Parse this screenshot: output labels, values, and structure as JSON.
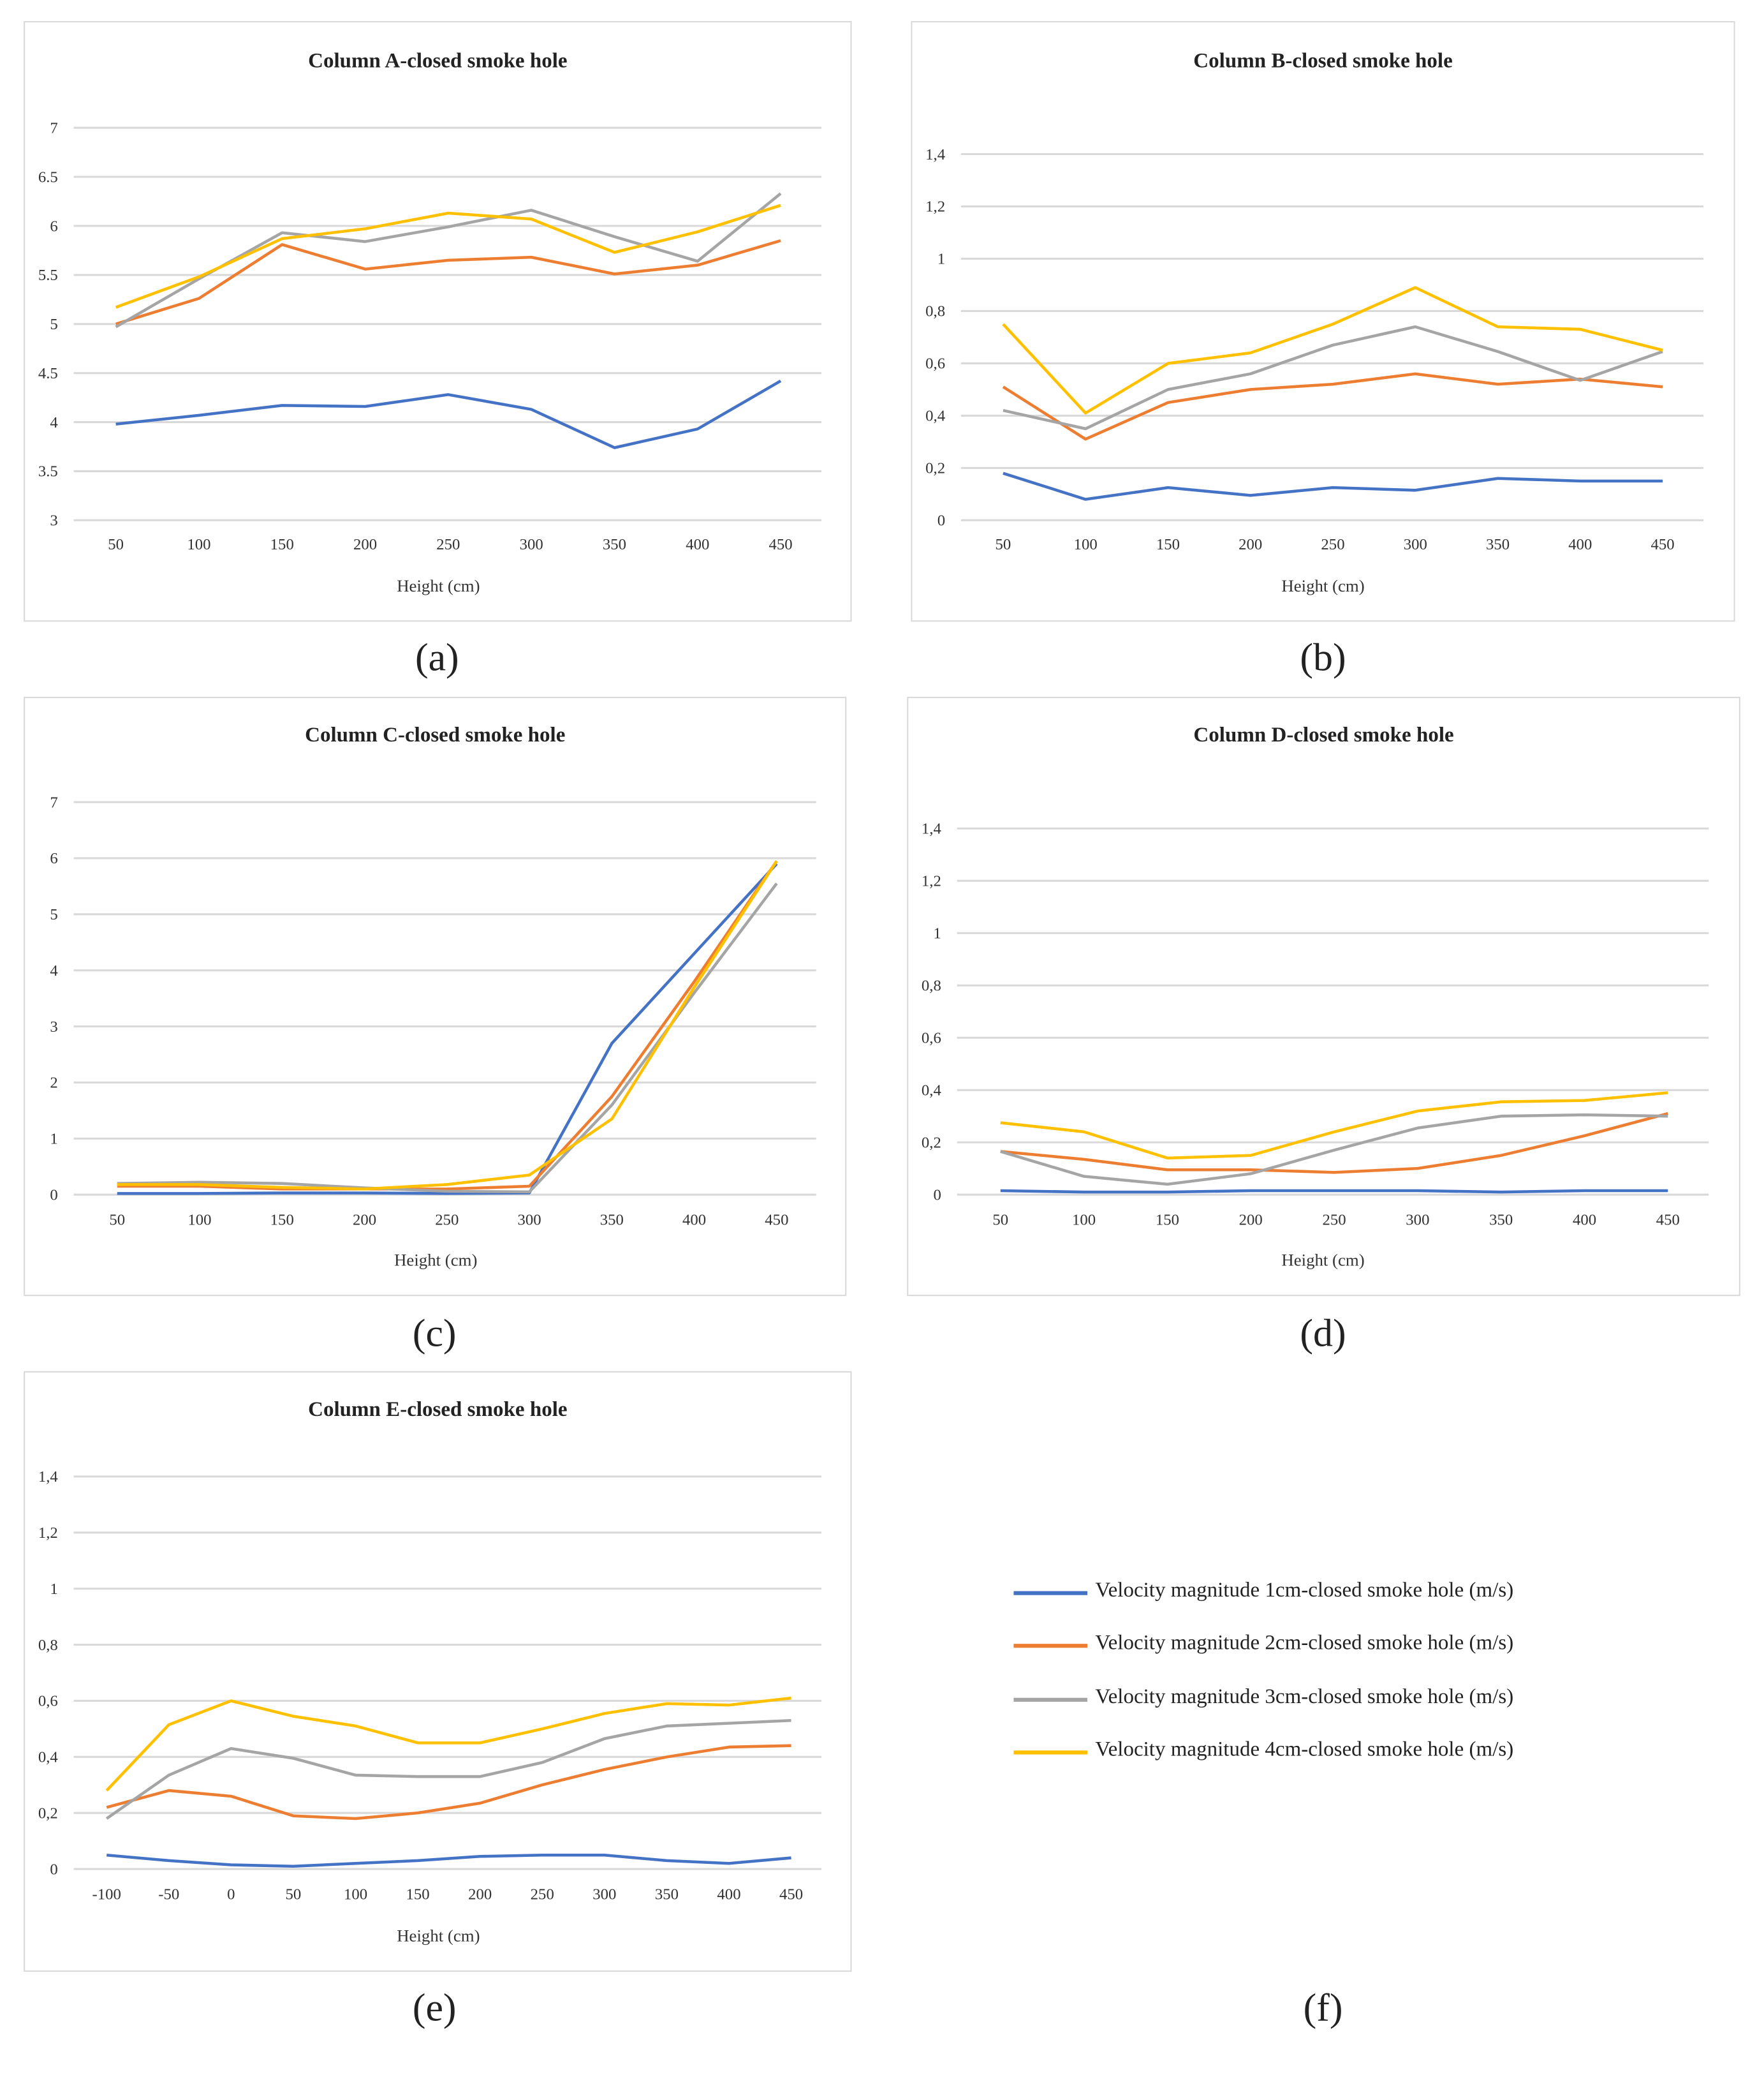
{
  "series_names": [
    "Velocity magnitude 1cm-closed smoke hole (m/s)",
    "Velocity magnitude 2cm-closed smoke hole (m/s)",
    "Velocity magnitude 3cm-closed smoke hole (m/s)",
    "Velocity magnitude 4cm-closed smoke hole (m/s)"
  ],
  "colors": [
    "#4472c4",
    "#ed7d31",
    "#a5a5a5",
    "#ffc000"
  ],
  "panel_labels": [
    "(a)",
    "(b)",
    "(c)",
    "(d)",
    "(e)",
    "(f)"
  ],
  "chart_data": [
    {
      "type": "line",
      "title": "Column A-closed smoke hole",
      "xlabel": "Height (cm)",
      "ylabel": "",
      "categories": [
        "50",
        "100",
        "150",
        "200",
        "250",
        "300",
        "350",
        "400",
        "450"
      ],
      "ylim": [
        3,
        7
      ],
      "yticks": [
        {
          "v": 3,
          "t": "3"
        },
        {
          "v": 3.5,
          "t": "3.5"
        },
        {
          "v": 4,
          "t": "4"
        },
        {
          "v": 4.5,
          "t": "4.5"
        },
        {
          "v": 5,
          "t": "5"
        },
        {
          "v": 5.5,
          "t": "5.5"
        },
        {
          "v": 6,
          "t": "6"
        },
        {
          "v": 6.5,
          "t": "6.5"
        },
        {
          "v": 7,
          "t": "7"
        }
      ],
      "grid": true,
      "series": [
        {
          "name": "Velocity magnitude 1cm-closed smoke hole (m/s)",
          "values": [
            3.98,
            4.07,
            4.17,
            4.16,
            4.28,
            4.13,
            3.74,
            3.93,
            4.42
          ]
        },
        {
          "name": "Velocity magnitude 2cm-closed smoke hole (m/s)",
          "values": [
            5.0,
            5.26,
            5.81,
            5.56,
            5.65,
            5.68,
            5.51,
            5.6,
            5.85
          ]
        },
        {
          "name": "Velocity magnitude 3cm-closed smoke hole (m/s)",
          "values": [
            4.97,
            5.46,
            5.93,
            5.84,
            5.99,
            6.16,
            5.89,
            5.64,
            6.33
          ]
        },
        {
          "name": "Velocity magnitude 4cm-closed smoke hole (m/s)",
          "values": [
            5.17,
            5.48,
            5.87,
            5.97,
            6.13,
            6.07,
            5.73,
            5.94,
            6.21
          ]
        }
      ]
    },
    {
      "type": "line",
      "title": "Column B-closed smoke hole",
      "xlabel": "Height (cm)",
      "ylabel": "",
      "categories": [
        "50",
        "100",
        "150",
        "200",
        "250",
        "300",
        "350",
        "400",
        "450"
      ],
      "ylim": [
        0,
        1.4
      ],
      "yticks": [
        {
          "v": 0,
          "t": "0"
        },
        {
          "v": 0.2,
          "t": "0,2"
        },
        {
          "v": 0.4,
          "t": "0,4"
        },
        {
          "v": 0.6,
          "t": "0,6"
        },
        {
          "v": 0.8,
          "t": "0,8"
        },
        {
          "v": 1,
          "t": "1"
        },
        {
          "v": 1.2,
          "t": "1,2"
        },
        {
          "v": 1.4,
          "t": "1,4"
        }
      ],
      "grid": true,
      "series": [
        {
          "name": "Velocity magnitude 1cm-closed smoke hole (m/s)",
          "values": [
            0.18,
            0.08,
            0.125,
            0.095,
            0.125,
            0.115,
            0.16,
            0.15,
            0.15
          ]
        },
        {
          "name": "Velocity magnitude 2cm-closed smoke hole (m/s)",
          "values": [
            0.51,
            0.31,
            0.45,
            0.5,
            0.52,
            0.56,
            0.52,
            0.54,
            0.51
          ]
        },
        {
          "name": "Velocity magnitude 3cm-closed smoke hole (m/s)",
          "values": [
            0.42,
            0.35,
            0.5,
            0.56,
            0.67,
            0.74,
            0.645,
            0.535,
            0.645
          ]
        },
        {
          "name": "Velocity magnitude 4cm-closed smoke hole (m/s)",
          "values": [
            0.75,
            0.41,
            0.6,
            0.64,
            0.75,
            0.89,
            0.74,
            0.73,
            0.65
          ]
        }
      ]
    },
    {
      "type": "line",
      "title": "Column C-closed smoke hole",
      "xlabel": "Height (cm)",
      "ylabel": "",
      "categories": [
        "50",
        "100",
        "150",
        "200",
        "250",
        "300",
        "350",
        "400",
        "450"
      ],
      "ylim": [
        0,
        7
      ],
      "yticks": [
        {
          "v": 0,
          "t": "0"
        },
        {
          "v": 1,
          "t": "1"
        },
        {
          "v": 2,
          "t": "2"
        },
        {
          "v": 3,
          "t": "3"
        },
        {
          "v": 4,
          "t": "4"
        },
        {
          "v": 5,
          "t": "5"
        },
        {
          "v": 6,
          "t": "6"
        },
        {
          "v": 7,
          "t": "7"
        }
      ],
      "grid": true,
      "series": [
        {
          "name": "Velocity magnitude 1cm-closed smoke hole (m/s)",
          "values": [
            0.02,
            0.02,
            0.03,
            0.03,
            0.02,
            0.03,
            2.7,
            4.3,
            5.9
          ]
        },
        {
          "name": "Velocity magnitude 2cm-closed smoke hole (m/s)",
          "values": [
            0.15,
            0.15,
            0.1,
            0.1,
            0.1,
            0.15,
            1.75,
            3.8,
            5.95
          ]
        },
        {
          "name": "Velocity magnitude 3cm-closed smoke hole (m/s)",
          "values": [
            0.2,
            0.22,
            0.2,
            0.12,
            0.06,
            0.05,
            1.6,
            3.6,
            5.55
          ]
        },
        {
          "name": "Velocity magnitude 4cm-closed smoke hole (m/s)",
          "values": [
            0.18,
            0.18,
            0.13,
            0.1,
            0.18,
            0.35,
            1.35,
            3.7,
            5.95
          ]
        }
      ]
    },
    {
      "type": "line",
      "title": "Column D-closed smoke hole",
      "xlabel": "Height (cm)",
      "ylabel": "",
      "categories": [
        "50",
        "100",
        "150",
        "200",
        "250",
        "300",
        "350",
        "400",
        "450"
      ],
      "ylim": [
        0,
        1.4
      ],
      "yticks": [
        {
          "v": 0,
          "t": "0"
        },
        {
          "v": 0.2,
          "t": "0,2"
        },
        {
          "v": 0.4,
          "t": "0,4"
        },
        {
          "v": 0.6,
          "t": "0,6"
        },
        {
          "v": 0.8,
          "t": "0,8"
        },
        {
          "v": 1,
          "t": "1"
        },
        {
          "v": 1.2,
          "t": "1,2"
        },
        {
          "v": 1.4,
          "t": "1,4"
        }
      ],
      "grid": true,
      "series": [
        {
          "name": "Velocity magnitude 1cm-closed smoke hole (m/s)",
          "values": [
            0.015,
            0.01,
            0.01,
            0.015,
            0.015,
            0.015,
            0.01,
            0.015,
            0.015
          ]
        },
        {
          "name": "Velocity magnitude 2cm-closed smoke hole (m/s)",
          "values": [
            0.165,
            0.135,
            0.095,
            0.095,
            0.085,
            0.1,
            0.15,
            0.225,
            0.31
          ]
        },
        {
          "name": "Velocity magnitude 3cm-closed smoke hole (m/s)",
          "values": [
            0.165,
            0.07,
            0.04,
            0.08,
            0.17,
            0.255,
            0.3,
            0.305,
            0.3
          ]
        },
        {
          "name": "Velocity magnitude 4cm-closed smoke hole (m/s)",
          "values": [
            0.275,
            0.24,
            0.14,
            0.15,
            0.24,
            0.32,
            0.355,
            0.36,
            0.39
          ]
        }
      ]
    },
    {
      "type": "line",
      "title": "Column E-closed smoke hole",
      "xlabel": "Height (cm)",
      "ylabel": "",
      "categories": [
        "-100",
        "-50",
        "0",
        "50",
        "100",
        "150",
        "200",
        "250",
        "300",
        "350",
        "400",
        "450"
      ],
      "ylim": [
        0,
        1.4
      ],
      "yticks": [
        {
          "v": 0,
          "t": "0"
        },
        {
          "v": 0.2,
          "t": "0,2"
        },
        {
          "v": 0.4,
          "t": "0,4"
        },
        {
          "v": 0.6,
          "t": "0,6"
        },
        {
          "v": 0.8,
          "t": "0,8"
        },
        {
          "v": 1,
          "t": "1"
        },
        {
          "v": 1.2,
          "t": "1,2"
        },
        {
          "v": 1.4,
          "t": "1,4"
        }
      ],
      "grid": true,
      "series": [
        {
          "name": "Velocity magnitude 1cm-closed smoke hole (m/s)",
          "values": [
            0.05,
            0.03,
            0.015,
            0.01,
            0.02,
            0.03,
            0.045,
            0.05,
            0.05,
            0.03,
            0.02,
            0.04
          ]
        },
        {
          "name": "Velocity magnitude 2cm-closed smoke hole (m/s)",
          "values": [
            0.22,
            0.28,
            0.26,
            0.19,
            0.18,
            0.2,
            0.235,
            0.3,
            0.355,
            0.4,
            0.435,
            0.44
          ]
        },
        {
          "name": "Velocity magnitude 3cm-closed smoke hole (m/s)",
          "values": [
            0.18,
            0.335,
            0.43,
            0.395,
            0.335,
            0.33,
            0.33,
            0.38,
            0.465,
            0.51,
            0.52,
            0.53
          ]
        },
        {
          "name": "Velocity magnitude 4cm-closed smoke hole (m/s)",
          "values": [
            0.28,
            0.515,
            0.6,
            0.545,
            0.51,
            0.45,
            0.45,
            0.5,
            0.555,
            0.59,
            0.585,
            0.61
          ]
        }
      ]
    }
  ]
}
